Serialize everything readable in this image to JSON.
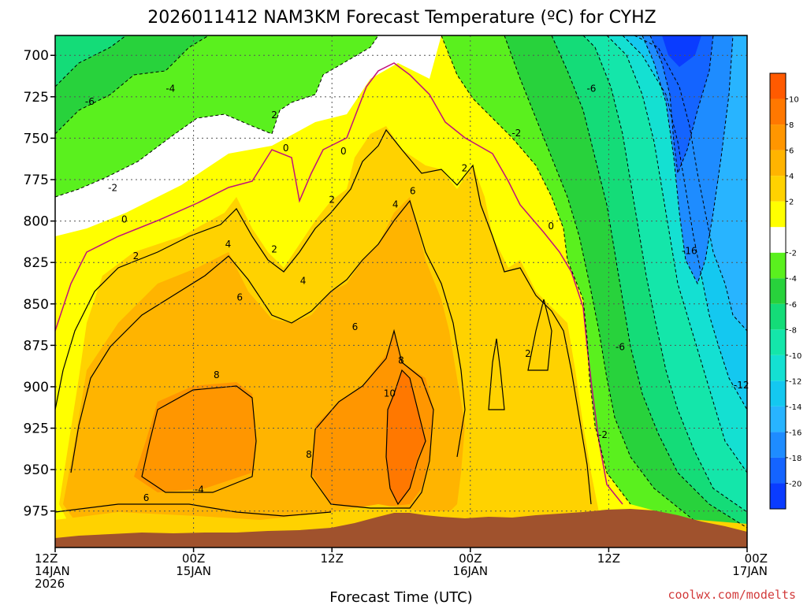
{
  "chart_data": {
    "type": "heatmap",
    "title": "2026011412 NAM3KM Forecast Temperature (ºC) for CYHZ",
    "xlabel": "Forecast Time (UTC)",
    "ylabel": "",
    "y_ticks": [
      "700",
      "725",
      "750",
      "775",
      "800",
      "825",
      "850",
      "875",
      "900",
      "925",
      "950",
      "975"
    ],
    "y_values_hpa": [
      700,
      725,
      750,
      775,
      800,
      825,
      850,
      875,
      900,
      925,
      950,
      975
    ],
    "ylim_hpa": [
      688,
      997
    ],
    "x_ticks": [
      {
        "hour": 0,
        "line1": "12Z",
        "line2": "14JAN",
        "line3": "2026"
      },
      {
        "hour": 12,
        "line1": "00Z",
        "line2": "15JAN",
        "line3": ""
      },
      {
        "hour": 24,
        "line1": "12Z",
        "line2": "",
        "line3": ""
      },
      {
        "hour": 36,
        "line1": "00Z",
        "line2": "16JAN",
        "line3": ""
      },
      {
        "hour": 48,
        "line1": "12Z",
        "line2": "",
        "line3": ""
      },
      {
        "hour": 60,
        "line1": "00Z",
        "line2": "17JAN",
        "line3": ""
      }
    ],
    "xlim_hours": [
      0,
      60
    ],
    "colorbar": {
      "levels": [
        -22,
        -20,
        -18,
        -16,
        -14,
        -12,
        -10,
        -8,
        -6,
        -4,
        -2,
        0,
        2,
        4,
        6,
        8,
        10,
        12
      ],
      "labels": [
        "-20",
        "-18",
        "-16",
        "-14",
        "-12",
        "-10",
        "-8",
        "-6",
        "-4",
        "-2",
        "2",
        "4",
        "6",
        "8",
        "10"
      ],
      "label_values": [
        -20,
        -18,
        -16,
        -14,
        -12,
        -10,
        -8,
        -6,
        -4,
        -2,
        2,
        4,
        6,
        8,
        10
      ],
      "colors": [
        "#0a3cff",
        "#1464ff",
        "#1e8cff",
        "#28b4ff",
        "#14c8f0",
        "#14e0d2",
        "#14e6aa",
        "#14dc78",
        "#28d23c",
        "#5af01e",
        "#ffffff",
        "#ffff00",
        "#ffd200",
        "#ffb400",
        "#ff9600",
        "#ff7800",
        "#ff5a00"
      ]
    },
    "contour_labels": [
      {
        "text": "-6",
        "h": 3.0,
        "p": 728
      },
      {
        "text": "-4",
        "h": 10.0,
        "p": 720
      },
      {
        "text": "-2",
        "h": 5.0,
        "p": 780
      },
      {
        "text": "0",
        "h": 6.0,
        "p": 799
      },
      {
        "text": "2",
        "h": 7.0,
        "p": 821
      },
      {
        "text": "4",
        "h": 15.0,
        "p": 814
      },
      {
        "text": "6",
        "h": 16.0,
        "p": 846
      },
      {
        "text": "8",
        "h": 14.0,
        "p": 893
      },
      {
        "text": "6",
        "h": 7.9,
        "p": 967
      },
      {
        "text": "-4",
        "h": 12.5,
        "p": 962
      },
      {
        "text": "2",
        "h": 19.0,
        "p": 736
      },
      {
        "text": "0",
        "h": 20.0,
        "p": 756
      },
      {
        "text": "0",
        "h": 25.0,
        "p": 758
      },
      {
        "text": "2",
        "h": 24.0,
        "p": 787
      },
      {
        "text": "2",
        "h": 19.0,
        "p": 817
      },
      {
        "text": "4",
        "h": 21.5,
        "p": 836
      },
      {
        "text": "6",
        "h": 26.0,
        "p": 864
      },
      {
        "text": "4",
        "h": 29.5,
        "p": 790
      },
      {
        "text": "6",
        "h": 31.0,
        "p": 782
      },
      {
        "text": "8",
        "h": 30.0,
        "p": 884
      },
      {
        "text": "10",
        "h": 29.0,
        "p": 904
      },
      {
        "text": "8",
        "h": 22.0,
        "p": 941
      },
      {
        "text": "2",
        "h": 35.5,
        "p": 768
      },
      {
        "text": "-2",
        "h": 40.0,
        "p": 747
      },
      {
        "text": "0",
        "h": 43.0,
        "p": 803
      },
      {
        "text": "2",
        "h": 41.0,
        "p": 880
      },
      {
        "text": "-6",
        "h": 46.5,
        "p": 720
      },
      {
        "text": "-16",
        "h": 55.0,
        "p": 818
      },
      {
        "text": "-6",
        "h": 49.0,
        "p": 876
      },
      {
        "text": "-12",
        "h": 59.5,
        "p": 899
      },
      {
        "text": "-2",
        "h": 47.5,
        "p": 929
      }
    ],
    "terrain_color": "#a0522d",
    "credit": "coolwx.com/modelts"
  }
}
